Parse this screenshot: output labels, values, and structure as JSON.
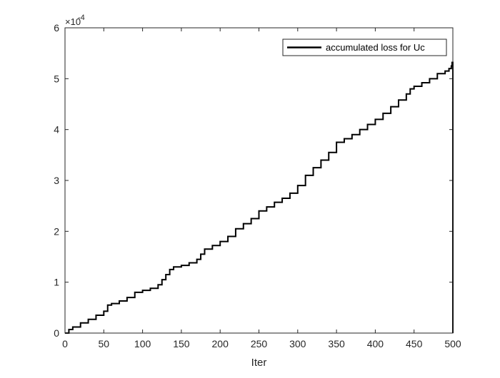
{
  "chart_data": {
    "type": "line",
    "title": "",
    "xlabel": "Iter",
    "ylabel": "",
    "xlim": [
      0,
      500
    ],
    "ylim": [
      0,
      6
    ],
    "y_multiplier_label": "×10",
    "y_multiplier_exponent": "-4",
    "xticks": [
      "0",
      "50",
      "100",
      "150",
      "200",
      "250",
      "300",
      "350",
      "400",
      "450",
      "500"
    ],
    "yticks": [
      "0",
      "1",
      "2",
      "3",
      "4",
      "5",
      "6"
    ],
    "grid": false,
    "legend_position": "top-right",
    "series": [
      {
        "name": "accumulated loss for Uc",
        "color": "#000000",
        "style": "stairs",
        "x": [
          0,
          5,
          10,
          20,
          30,
          40,
          50,
          55,
          60,
          70,
          80,
          90,
          100,
          110,
          120,
          125,
          130,
          135,
          140,
          150,
          160,
          170,
          175,
          180,
          190,
          200,
          210,
          220,
          230,
          240,
          250,
          260,
          270,
          280,
          290,
          300,
          310,
          320,
          330,
          340,
          350,
          360,
          370,
          380,
          390,
          400,
          410,
          420,
          430,
          440,
          445,
          450,
          460,
          470,
          480,
          490,
          495,
          498,
          499,
          500,
          500
        ],
        "y": [
          0.0,
          0.07,
          0.12,
          0.2,
          0.27,
          0.35,
          0.43,
          0.55,
          0.58,
          0.63,
          0.7,
          0.8,
          0.84,
          0.88,
          0.95,
          1.05,
          1.15,
          1.25,
          1.3,
          1.33,
          1.38,
          1.45,
          1.55,
          1.65,
          1.72,
          1.8,
          1.9,
          2.05,
          2.15,
          2.25,
          2.4,
          2.48,
          2.57,
          2.65,
          2.75,
          2.9,
          3.1,
          3.25,
          3.4,
          3.55,
          3.75,
          3.82,
          3.9,
          4.0,
          4.1,
          4.2,
          4.32,
          4.45,
          4.58,
          4.7,
          4.8,
          4.85,
          4.92,
          5.0,
          5.1,
          5.15,
          5.2,
          5.25,
          5.32,
          5.3,
          0.0
        ]
      }
    ]
  }
}
